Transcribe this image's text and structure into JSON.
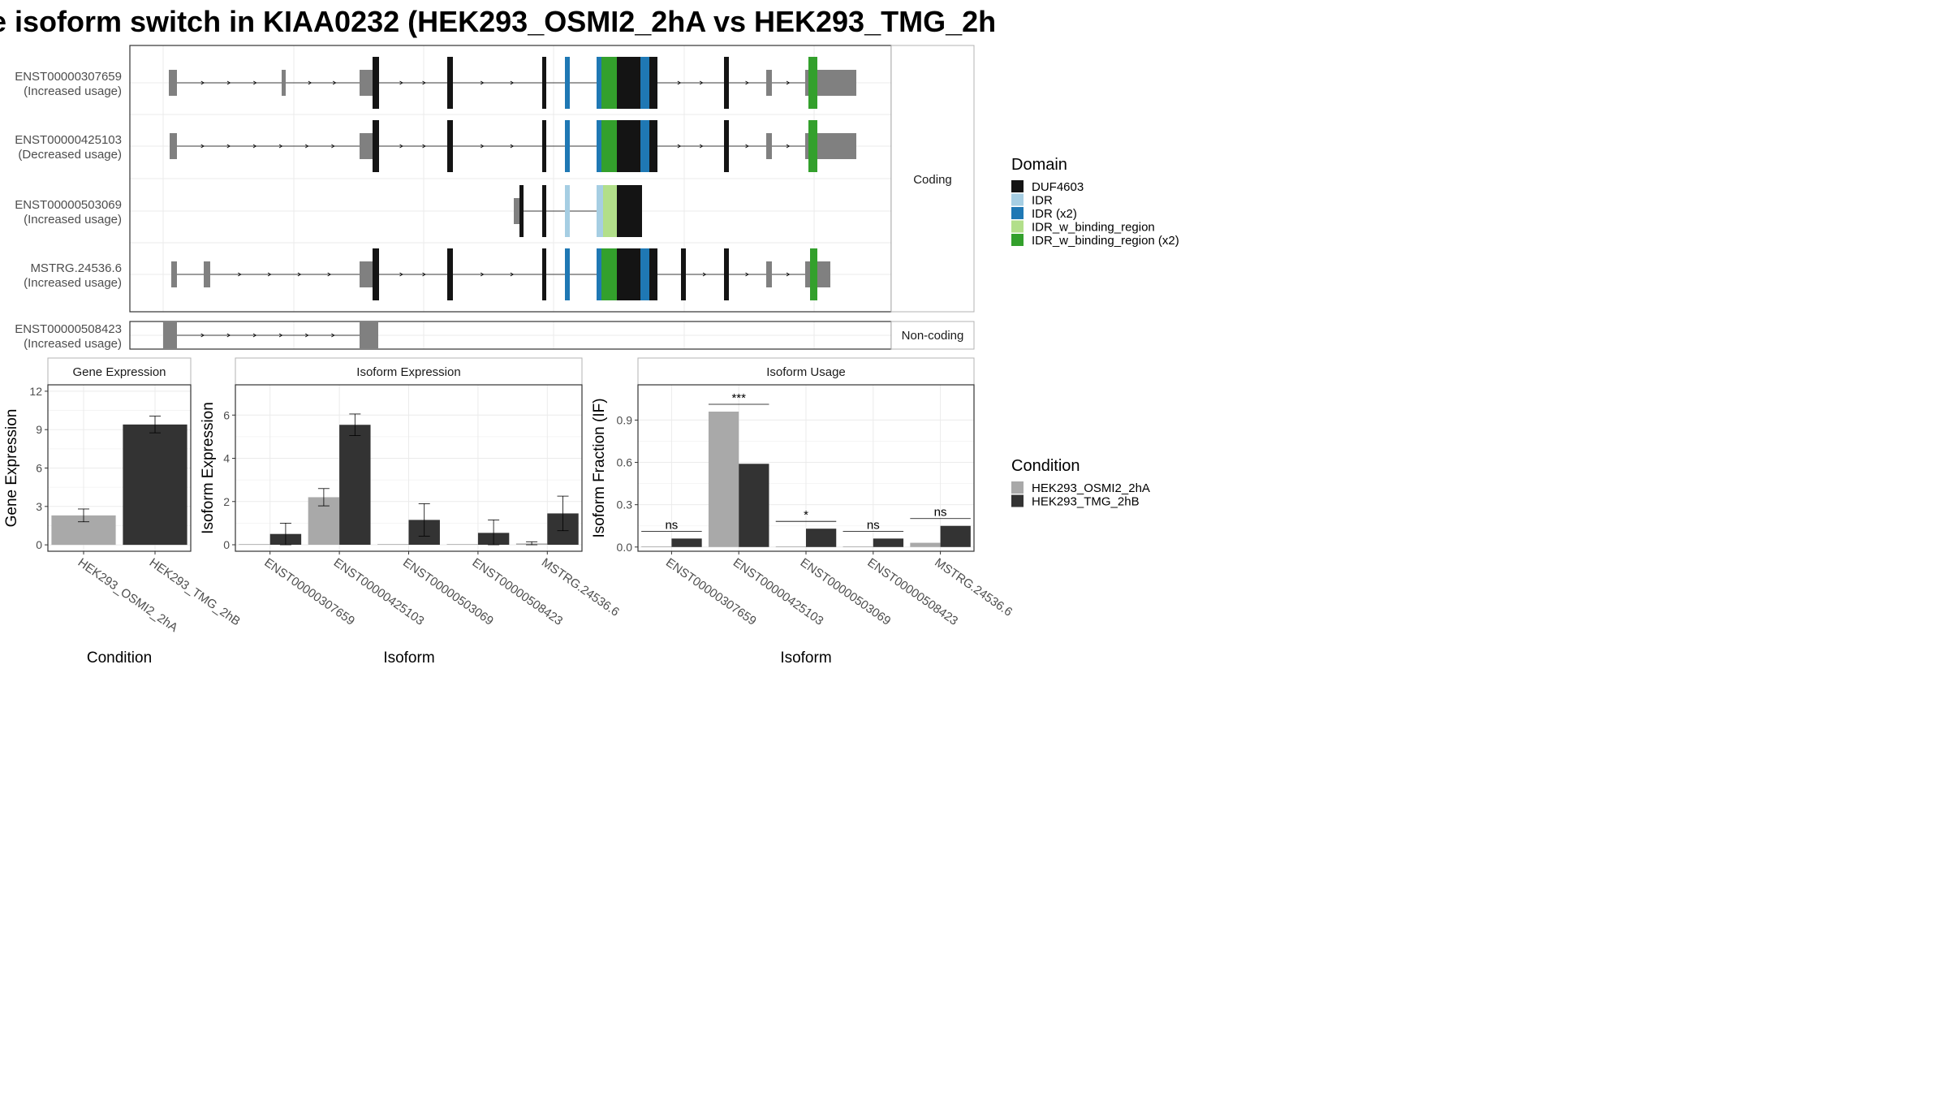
{
  "title": "e isoform switch in KIAA0232 (HEK293_OSMI2_2hA vs HEK293_TMG_2h",
  "colors": {
    "utr": "#808080",
    "DUF4603": "#141414",
    "IDR": "#a6cee3",
    "IDR (x2)": "#1f78b4",
    "IDR_w_binding_region": "#b2df8a",
    "IDR_w_binding_region (x2)": "#33a02c",
    "cond_a": "#a9a9a9",
    "cond_b": "#333333"
  },
  "facets": {
    "coding": "Coding",
    "noncoding": "Non-coding"
  },
  "domain_legend": {
    "title": "Domain",
    "items": [
      "DUF4603",
      "IDR",
      "IDR (x2)",
      "IDR_w_binding_region",
      "IDR_w_binding_region (x2)"
    ]
  },
  "condition_legend": {
    "title": "Condition",
    "items": [
      "HEK293_OSMI2_2hA",
      "HEK293_TMG_2hB"
    ]
  },
  "chart_data": [
    {
      "type": "gene-structure",
      "coding_transcripts": [
        {
          "name": "ENST00000307659",
          "usage": "(Increased usage)",
          "exons": [
            [
              208,
              218,
              "utr"
            ],
            [
              347,
              352,
              "utr"
            ],
            [
              443,
              453,
              "utr"
            ],
            [
              453,
              459,
              "utr"
            ],
            [
              459,
              467,
              "DUF4603"
            ],
            [
              551,
              558,
              "DUF4603"
            ],
            [
              668,
              673,
              "DUF4603"
            ],
            [
              696,
              702,
              "IDR (x2)"
            ],
            [
              735,
              741,
              "IDR (x2)"
            ],
            [
              741,
              760,
              "IDR_w_binding_region (x2)"
            ],
            [
              760,
              789,
              "DUF4603"
            ],
            [
              789,
              800,
              "IDR (x2)"
            ],
            [
              800,
              810,
              "DUF4603"
            ],
            [
              892,
              898,
              "DUF4603"
            ],
            [
              944,
              951,
              "utr"
            ],
            [
              992,
              996,
              "utr"
            ],
            [
              996,
              1007,
              "IDR_w_binding_region (x2)"
            ],
            [
              1007,
              1055,
              "utr"
            ]
          ]
        },
        {
          "name": "ENST00000425103",
          "usage": "(Decreased usage)",
          "exons": [
            [
              209,
              218,
              "utr"
            ],
            [
              443,
              453,
              "utr"
            ],
            [
              453,
              459,
              "utr"
            ],
            [
              459,
              467,
              "DUF4603"
            ],
            [
              551,
              558,
              "DUF4603"
            ],
            [
              668,
              673,
              "DUF4603"
            ],
            [
              696,
              702,
              "IDR (x2)"
            ],
            [
              735,
              741,
              "IDR (x2)"
            ],
            [
              741,
              760,
              "IDR_w_binding_region (x2)"
            ],
            [
              760,
              789,
              "DUF4603"
            ],
            [
              789,
              800,
              "IDR (x2)"
            ],
            [
              800,
              810,
              "DUF4603"
            ],
            [
              892,
              898,
              "DUF4603"
            ],
            [
              944,
              951,
              "utr"
            ],
            [
              992,
              996,
              "utr"
            ],
            [
              996,
              1007,
              "IDR_w_binding_region (x2)"
            ],
            [
              1007,
              1055,
              "utr"
            ]
          ]
        },
        {
          "name": "ENST00000503069",
          "usage": "(Increased usage)",
          "exons": [
            [
              633,
              640,
              "utr"
            ],
            [
              640,
              645,
              "DUF4603"
            ],
            [
              668,
              673,
              "DUF4603"
            ],
            [
              696,
              702,
              "IDR"
            ],
            [
              735,
              743,
              "IDR"
            ],
            [
              743,
              760,
              "IDR_w_binding_region"
            ],
            [
              760,
              791,
              "DUF4603"
            ]
          ]
        },
        {
          "name": "MSTRG.24536.6",
          "usage": "(Increased usage)",
          "exons": [
            [
              211,
              218,
              "utr"
            ],
            [
              251,
              259,
              "utr"
            ],
            [
              443,
              453,
              "utr"
            ],
            [
              453,
              459,
              "utr"
            ],
            [
              459,
              467,
              "DUF4603"
            ],
            [
              551,
              558,
              "DUF4603"
            ],
            [
              668,
              673,
              "DUF4603"
            ],
            [
              696,
              702,
              "IDR (x2)"
            ],
            [
              735,
              741,
              "IDR (x2)"
            ],
            [
              741,
              760,
              "IDR_w_binding_region (x2)"
            ],
            [
              760,
              789,
              "DUF4603"
            ],
            [
              789,
              800,
              "IDR (x2)"
            ],
            [
              800,
              810,
              "DUF4603"
            ],
            [
              839,
              845,
              "DUF4603"
            ],
            [
              892,
              898,
              "DUF4603"
            ],
            [
              944,
              951,
              "utr"
            ],
            [
              992,
              998,
              "utr"
            ],
            [
              998,
              1007,
              "IDR_w_binding_region (x2)"
            ],
            [
              1007,
              1023,
              "utr"
            ]
          ]
        }
      ],
      "noncoding_transcripts": [
        {
          "name": "ENST00000508423",
          "usage": "(Increased usage)",
          "exons": [
            [
              201,
              218,
              "utr"
            ],
            [
              443,
              466,
              "utr"
            ]
          ]
        }
      ]
    },
    {
      "type": "bar",
      "title": "Gene Expression",
      "xlabel": "Condition",
      "ylabel": "Gene Expression",
      "categories": [
        "HEK293_OSMI2_2hA",
        "HEK293_TMG_2hB"
      ],
      "values": [
        2.3,
        9.4
      ],
      "errors": [
        0.5,
        0.65
      ],
      "yticks": [
        0,
        3,
        6,
        9,
        12
      ],
      "ylim": [
        -0.5,
        12.5
      ]
    },
    {
      "type": "bar",
      "title": "Isoform Expression",
      "xlabel": "Isoform",
      "ylabel": "Isoform Expression",
      "categories": [
        "ENST00000307659",
        "ENST00000425103",
        "ENST00000503069",
        "ENST00000508423",
        "MSTRG.24536.6"
      ],
      "series": [
        {
          "values": [
            0.0,
            2.2,
            0.0,
            0.0,
            0.06
          ],
          "errors": [
            0.0,
            0.4,
            0.0,
            0.0,
            0.08
          ]
        },
        {
          "values": [
            0.5,
            5.55,
            1.15,
            0.55,
            1.45
          ],
          "errors": [
            0.5,
            0.5,
            0.75,
            0.6,
            0.8
          ]
        }
      ],
      "yticks": [
        0,
        2,
        4,
        6
      ],
      "ylim": [
        -0.3,
        7.4
      ]
    },
    {
      "type": "bar",
      "title": "Isoform Usage",
      "xlabel": "Isoform",
      "ylabel": "Isoform Fraction (IF)",
      "categories": [
        "ENST00000307659",
        "ENST00000425103",
        "ENST00000503069",
        "ENST00000508423",
        "MSTRG.24536.6"
      ],
      "series": [
        {
          "values": [
            0.0,
            0.96,
            0.0,
            0.0,
            0.03
          ]
        },
        {
          "values": [
            0.06,
            0.59,
            0.13,
            0.06,
            0.15
          ]
        }
      ],
      "significance": [
        "ns",
        "***",
        "*",
        "ns",
        "ns"
      ],
      "yticks": [
        0.0,
        0.3,
        0.6,
        0.9
      ],
      "yticklabels": [
        "0.0",
        "0.3",
        "0.6",
        "0.9"
      ],
      "ylim": [
        -0.03,
        1.15
      ]
    }
  ]
}
